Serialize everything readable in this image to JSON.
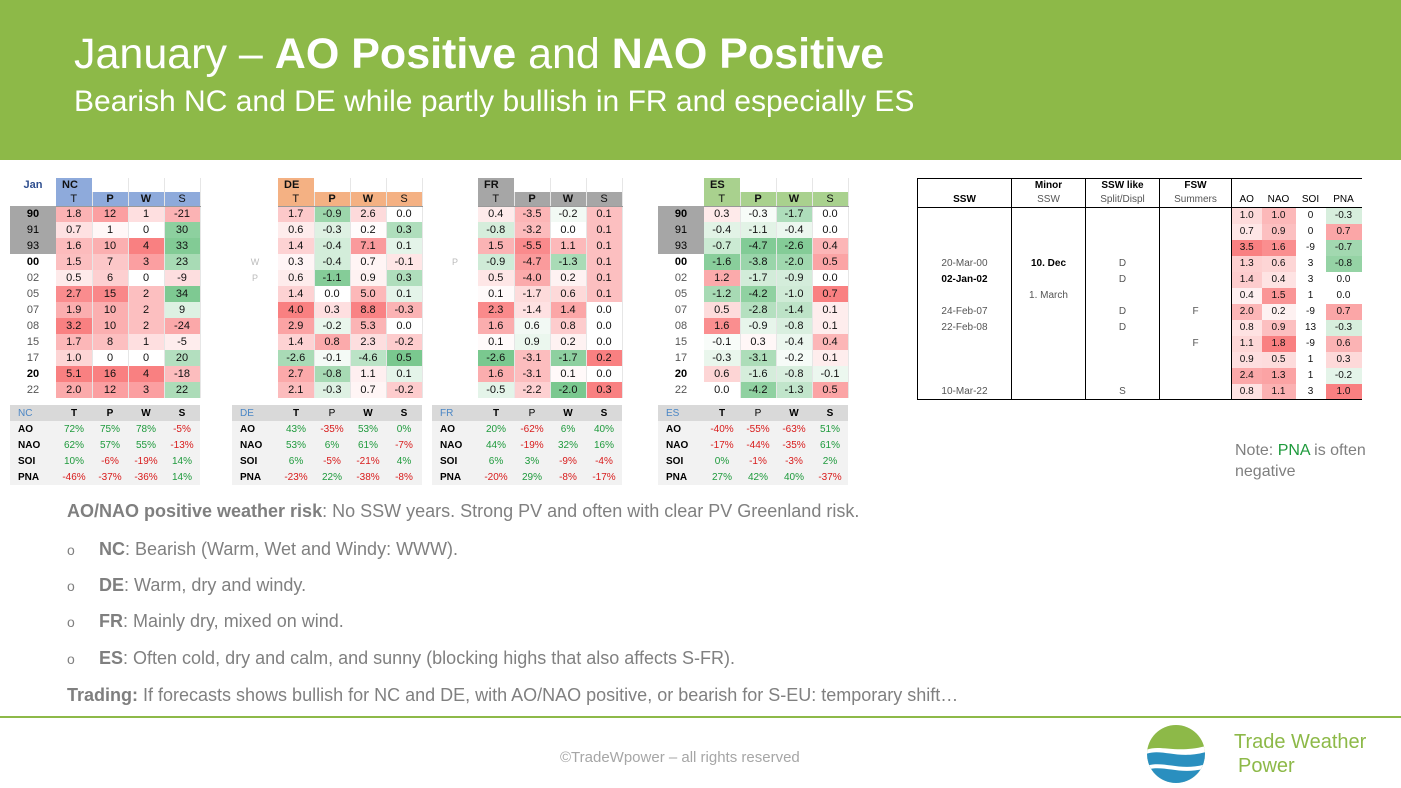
{
  "title": {
    "prefix": "January – ",
    "ao": "AO Positive",
    "middle": " and ",
    "nao": "NAO Positive",
    "subtitle": "Bearish NC and DE while partly bullish in FR and especially ES"
  },
  "year_label": "Jan",
  "letters": [
    "W",
    "P",
    "W"
  ],
  "years": [
    {
      "y": "90",
      "style": "shade-bold"
    },
    {
      "y": "91",
      "style": "shade"
    },
    {
      "y": "93",
      "style": "shade"
    },
    {
      "y": "00",
      "style": "bold"
    },
    {
      "y": "02",
      "style": "normal"
    },
    {
      "y": "05",
      "style": "normal"
    },
    {
      "y": "07",
      "style": "normal"
    },
    {
      "y": "08",
      "style": "normal"
    },
    {
      "y": "15",
      "style": "normal"
    },
    {
      "y": "17",
      "style": "normal"
    },
    {
      "y": "20",
      "style": "bold"
    },
    {
      "y": "22",
      "style": "normal"
    }
  ],
  "regions": [
    {
      "name": "NC",
      "color": "#8eaadb",
      "show_years": false,
      "cols": [
        "T",
        "P",
        "W",
        "S"
      ],
      "rows": [
        [
          1.8,
          12,
          1,
          -21
        ],
        [
          0.7,
          1,
          0,
          30
        ],
        [
          1.6,
          10,
          4,
          33
        ],
        [
          1.5,
          7,
          3,
          23
        ],
        [
          0.5,
          6,
          0,
          -9
        ],
        [
          2.7,
          15,
          2,
          34
        ],
        [
          1.9,
          10,
          2,
          9
        ],
        [
          3.2,
          10,
          2,
          -24
        ],
        [
          1.7,
          8,
          1,
          -5
        ],
        [
          1.0,
          0,
          0,
          20
        ],
        [
          5.1,
          16,
          4,
          -18
        ],
        [
          2.0,
          12,
          3,
          22
        ]
      ],
      "dec": [
        1,
        0,
        0,
        0
      ],
      "scale": [
        3,
        16,
        4,
        35
      ],
      "sign": [
        1,
        1,
        1,
        -1
      ]
    },
    {
      "name": "DE",
      "color": "#f4b183",
      "show_years": false,
      "cols": [
        "T",
        "P",
        "W",
        "S"
      ],
      "rows": [
        [
          1.7,
          -0.9,
          2.6,
          0.0
        ],
        [
          0.6,
          -0.3,
          0.2,
          0.3
        ],
        [
          1.4,
          -0.4,
          7.1,
          0.1
        ],
        [
          0.3,
          -0.4,
          0.7,
          -0.1
        ],
        [
          0.6,
          -1.1,
          0.9,
          0.3
        ],
        [
          1.4,
          0.0,
          5.0,
          0.1
        ],
        [
          4.0,
          0.3,
          8.8,
          -0.3
        ],
        [
          2.9,
          -0.2,
          5.3,
          0.0
        ],
        [
          1.4,
          0.8,
          2.3,
          -0.2
        ],
        [
          -2.6,
          -0.1,
          -4.6,
          0.5
        ],
        [
          2.7,
          -0.8,
          1.1,
          0.1
        ],
        [
          2.1,
          -0.3,
          0.7,
          -0.2
        ]
      ],
      "dec": [
        1,
        1,
        1,
        1
      ],
      "scale": [
        4,
        1.2,
        9,
        0.5
      ],
      "sign": [
        1,
        1,
        1,
        -1
      ]
    },
    {
      "name": "FR",
      "color": "#a6a6a6",
      "show_years": false,
      "cols": [
        "T",
        "P",
        "W",
        "S"
      ],
      "rows": [
        [
          0.4,
          -3.5,
          -0.2,
          0.1
        ],
        [
          -0.8,
          -3.2,
          0.0,
          0.1
        ],
        [
          1.5,
          -5.5,
          1.1,
          0.1
        ],
        [
          -0.9,
          -4.7,
          -1.3,
          0.1
        ],
        [
          0.5,
          -4.0,
          0.2,
          0.1
        ],
        [
          0.1,
          -1.7,
          0.6,
          0.1
        ],
        [
          2.3,
          -1.4,
          1.4,
          0.0
        ],
        [
          1.6,
          0.6,
          0.8,
          0.0
        ],
        [
          0.1,
          0.9,
          0.2,
          0.0
        ],
        [
          -2.6,
          -3.1,
          -1.7,
          0.2
        ],
        [
          1.6,
          -3.1,
          0.1,
          0.0
        ],
        [
          -0.5,
          -2.2,
          -2.0,
          0.3
        ]
      ],
      "dec": [
        1,
        1,
        1,
        1
      ],
      "scale": [
        2.5,
        6,
        2,
        0.2
      ],
      "sign": [
        1,
        -1,
        1,
        1
      ]
    },
    {
      "name": "ES",
      "color": "#a9d18e",
      "show_years": true,
      "cols": [
        "T",
        "P",
        "W",
        "S"
      ],
      "rows": [
        [
          0.3,
          -0.3,
          -1.7,
          0.0
        ],
        [
          -0.4,
          -1.1,
          -0.4,
          0.0
        ],
        [
          -0.7,
          -4.7,
          -2.6,
          0.4
        ],
        [
          -1.6,
          -3.8,
          -2.0,
          0.5
        ],
        [
          1.2,
          -1.7,
          -0.9,
          0.0
        ],
        [
          -1.2,
          -4.2,
          -1.0,
          0.7
        ],
        [
          0.5,
          -2.8,
          -1.4,
          0.1
        ],
        [
          1.6,
          -0.9,
          -0.8,
          0.1
        ],
        [
          -0.1,
          0.3,
          -0.4,
          0.4
        ],
        [
          -0.3,
          -3.1,
          -0.2,
          0.1
        ],
        [
          0.6,
          -1.6,
          -0.8,
          -0.1
        ],
        [
          0.0,
          -4.2,
          -1.3,
          0.5
        ]
      ],
      "dec": [
        1,
        1,
        1,
        1
      ],
      "scale": [
        1.8,
        5,
        2.8,
        0.7
      ],
      "sign": [
        1,
        1,
        1,
        1
      ]
    }
  ],
  "correlations": [
    {
      "name": "NC",
      "cols": [
        "T",
        "P",
        "W",
        "S"
      ],
      "rows": [
        {
          "label": "AO",
          "values": [
            "72%",
            "75%",
            "78%",
            "-5%"
          ]
        },
        {
          "label": "NAO",
          "values": [
            "62%",
            "57%",
            "55%",
            "-13%"
          ]
        },
        {
          "label": "SOI",
          "values": [
            "10%",
            "-6%",
            "-19%",
            "14%"
          ]
        },
        {
          "label": "PNA",
          "values": [
            "-46%",
            "-37%",
            "-36%",
            "14%"
          ]
        }
      ]
    },
    {
      "name": "DE",
      "cols": [
        "T",
        "P",
        "W",
        "S"
      ],
      "rows": [
        {
          "label": "AO",
          "values": [
            "43%",
            "-35%",
            "53%",
            "0%"
          ]
        },
        {
          "label": "NAO",
          "values": [
            "53%",
            "6%",
            "61%",
            "-7%"
          ]
        },
        {
          "label": "SOI",
          "values": [
            "6%",
            "-5%",
            "-21%",
            "4%"
          ]
        },
        {
          "label": "PNA",
          "values": [
            "-23%",
            "22%",
            "-38%",
            "-8%"
          ]
        }
      ]
    },
    {
      "name": "FR",
      "cols": [
        "T",
        "P",
        "W",
        "S"
      ],
      "rows": [
        {
          "label": "AO",
          "values": [
            "20%",
            "-62%",
            "6%",
            "40%"
          ]
        },
        {
          "label": "NAO",
          "values": [
            "44%",
            "-19%",
            "32%",
            "16%"
          ]
        },
        {
          "label": "SOI",
          "values": [
            "6%",
            "3%",
            "-9%",
            "-4%"
          ]
        },
        {
          "label": "PNA",
          "values": [
            "-20%",
            "29%",
            "-8%",
            "-17%"
          ]
        }
      ]
    },
    {
      "name": "ES",
      "cols": [
        "T",
        "P",
        "W",
        "S"
      ],
      "rows": [
        {
          "label": "AO",
          "values": [
            "-40%",
            "-55%",
            "-63%",
            "51%"
          ]
        },
        {
          "label": "NAO",
          "values": [
            "-17%",
            "-44%",
            "-35%",
            "61%"
          ]
        },
        {
          "label": "SOI",
          "values": [
            "0%",
            "-1%",
            "-3%",
            "2%"
          ]
        },
        {
          "label": "PNA",
          "values": [
            "27%",
            "42%",
            "40%",
            "-37%"
          ]
        }
      ]
    }
  ],
  "ssw": {
    "headers": {
      "ssw": "SSW",
      "minor": "Minor",
      "minor_sub": "SSW",
      "like": "SSW like",
      "like_sub": "Split/Displ",
      "fsw": "FSW",
      "fsw_sub": "Summers",
      "ao": "AO",
      "nao": "NAO",
      "soi": "SOI",
      "pna": "PNA"
    },
    "rows": [
      {
        "date": "",
        "minor": "",
        "minor_bold": false,
        "date_bold": false,
        "like": "",
        "fsw": "",
        "ao": 1.0,
        "nao": 1.0,
        "soi": 0,
        "pna": -0.3
      },
      {
        "date": "",
        "minor": "",
        "minor_bold": false,
        "date_bold": false,
        "like": "",
        "fsw": "",
        "ao": 0.7,
        "nao": 0.9,
        "soi": 0,
        "pna": 0.7
      },
      {
        "date": "",
        "minor": "",
        "minor_bold": false,
        "date_bold": false,
        "like": "",
        "fsw": "",
        "ao": 3.5,
        "nao": 1.6,
        "soi": -9,
        "pna": -0.7
      },
      {
        "date": "20-Mar-00",
        "minor": "10. Dec",
        "minor_bold": true,
        "date_bold": false,
        "like": "D",
        "fsw": "",
        "ao": 1.3,
        "nao": 0.6,
        "soi": 3,
        "pna": -0.8
      },
      {
        "date": "02-Jan-02",
        "minor": "",
        "minor_bold": false,
        "date_bold": true,
        "like": "D",
        "fsw": "",
        "ao": 1.4,
        "nao": 0.4,
        "soi": 3,
        "pna": 0.0
      },
      {
        "date": "",
        "minor": "1. March",
        "minor_bold": false,
        "date_bold": false,
        "like": "",
        "fsw": "",
        "ao": 0.4,
        "nao": 1.5,
        "soi": 1,
        "pna": 0.0
      },
      {
        "date": "24-Feb-07",
        "minor": "",
        "minor_bold": false,
        "date_bold": false,
        "like": "D",
        "fsw": "F",
        "ao": 2.0,
        "nao": 0.2,
        "soi": -9,
        "pna": 0.7
      },
      {
        "date": "22-Feb-08",
        "minor": "",
        "minor_bold": false,
        "date_bold": false,
        "like": "D",
        "fsw": "",
        "ao": 0.8,
        "nao": 0.9,
        "soi": 13,
        "pna": -0.3
      },
      {
        "date": "",
        "minor": "",
        "minor_bold": false,
        "date_bold": false,
        "like": "",
        "fsw": "F",
        "ao": 1.1,
        "nao": 1.8,
        "soi": -9,
        "pna": 0.6
      },
      {
        "date": "",
        "minor": "",
        "minor_bold": false,
        "date_bold": false,
        "like": "",
        "fsw": "",
        "ao": 0.9,
        "nao": 0.5,
        "soi": 1,
        "pna": 0.3
      },
      {
        "date": "",
        "minor": "",
        "minor_bold": false,
        "date_bold": false,
        "like": "",
        "fsw": "",
        "ao": 2.4,
        "nao": 1.3,
        "soi": 1,
        "pna": -0.2
      },
      {
        "date": "10-Mar-22",
        "minor": "",
        "minor_bold": false,
        "date_bold": false,
        "like": "S",
        "fsw": "",
        "ao": 0.8,
        "nao": 1.1,
        "soi": 3,
        "pna": 1.0
      }
    ]
  },
  "note": {
    "prefix": "Note: ",
    "highlight": "PNA",
    "suffix": " is often negative"
  },
  "risk": {
    "label": "AO/NAO positive weather risk",
    "text": ": No SSW years. Strong PV and often with clear PV Greenland risk."
  },
  "bullets": [
    {
      "marker": "o",
      "label": "NC",
      "text": ": Bearish (Warm, Wet and Windy: WWW)."
    },
    {
      "marker": "o",
      "label": "DE",
      "text": ": Warm, dry and windy."
    },
    {
      "marker": "o",
      "label": "FR",
      "text": ": Mainly dry, mixed on wind."
    },
    {
      "marker": "o",
      "label": "ES",
      "text": ": Often cold, dry and calm, and sunny (blocking highs that also affects S-FR)."
    }
  ],
  "trading": {
    "label": "Trading:",
    "text": " If forecasts shows bullish for NC and DE, with AO/NAO positive, or bearish for S-EU: temporary shift…"
  },
  "footer": {
    "copyright": "©TradeWpower – all rights reserved",
    "brand_line1": "Trade Weather",
    "brand_line2": "Power"
  },
  "colors": {
    "header_green": "#8db948",
    "positive_red": "#f8696b",
    "negative_green": "#63be7b",
    "corr_pos": "#1e9a3c",
    "corr_neg": "#d81b1b"
  }
}
